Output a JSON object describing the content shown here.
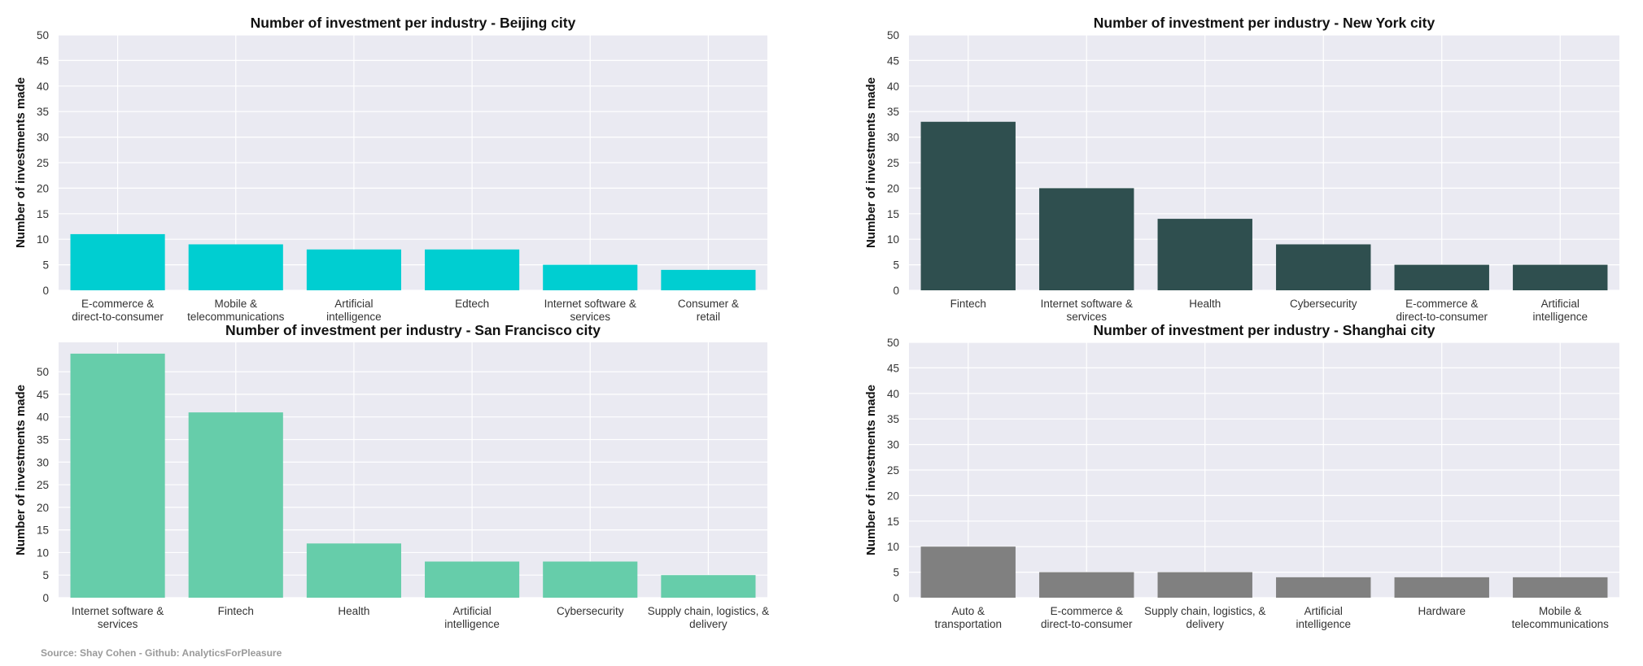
{
  "chart_data": [
    {
      "type": "bar",
      "title": "Number of investment per industry - Beijing city",
      "ylabel": "Number of investments made",
      "categories": [
        [
          "E-commerce &",
          "direct-to-consumer"
        ],
        [
          "Mobile &",
          "telecommunications"
        ],
        [
          "Artificial",
          "intelligence"
        ],
        [
          "Edtech"
        ],
        [
          "Internet software &",
          "services"
        ],
        [
          "Consumer &",
          "retail"
        ]
      ],
      "values": [
        11,
        9,
        8,
        8,
        5,
        4
      ],
      "ylim": [
        0,
        50
      ],
      "yticks": [
        0,
        5,
        10,
        15,
        20,
        25,
        30,
        35,
        40,
        45,
        50
      ],
      "color": "#00ced1",
      "grid": true
    },
    {
      "type": "bar",
      "title": "Number of investment per industry - New York city",
      "ylabel": "Number of investments made",
      "categories": [
        [
          "Fintech"
        ],
        [
          "Internet software &",
          "services"
        ],
        [
          "Health"
        ],
        [
          "Cybersecurity"
        ],
        [
          "E-commerce &",
          "direct-to-consumer"
        ],
        [
          "Artificial",
          "intelligence"
        ]
      ],
      "values": [
        33,
        20,
        14,
        9,
        5,
        5
      ],
      "ylim": [
        0,
        50
      ],
      "yticks": [
        0,
        5,
        10,
        15,
        20,
        25,
        30,
        35,
        40,
        45,
        50
      ],
      "color": "#2f4f4f",
      "grid": true
    },
    {
      "type": "bar",
      "title": "Number of investment per industry - San Francisco city",
      "ylabel": "Number of investments made",
      "categories": [
        [
          "Internet software &",
          "services"
        ],
        [
          "Fintech"
        ],
        [
          "Health"
        ],
        [
          "Artificial",
          "intelligence"
        ],
        [
          "Cybersecurity"
        ],
        [
          "Supply chain, logistics, &",
          "delivery"
        ]
      ],
      "values": [
        54,
        41,
        12,
        8,
        8,
        5
      ],
      "ylim": [
        0,
        56.5
      ],
      "yticks": [
        0,
        5,
        10,
        15,
        20,
        25,
        30,
        35,
        40,
        45,
        50
      ],
      "color": "#66cdaa",
      "grid": true
    },
    {
      "type": "bar",
      "title": "Number of investment per industry - Shanghai city",
      "ylabel": "Number of investments made",
      "categories": [
        [
          "Auto &",
          "transportation"
        ],
        [
          "E-commerce &",
          "direct-to-consumer"
        ],
        [
          "Supply chain, logistics, &",
          "delivery"
        ],
        [
          "Artificial",
          "intelligence"
        ],
        [
          "Hardware"
        ],
        [
          "Mobile &",
          "telecommunications"
        ]
      ],
      "values": [
        10,
        5,
        5,
        4,
        4,
        4
      ],
      "ylim": [
        0,
        50
      ],
      "yticks": [
        0,
        5,
        10,
        15,
        20,
        25,
        30,
        35,
        40,
        45,
        50
      ],
      "color": "#808080",
      "grid": true
    }
  ],
  "footer": {
    "source": "Source: Shay Cohen - Github: AnalyticsForPleasure"
  }
}
